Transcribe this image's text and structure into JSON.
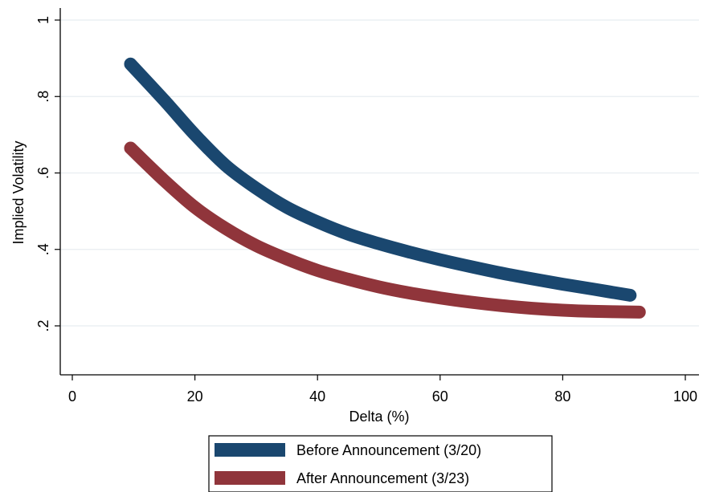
{
  "chart_data": {
    "type": "line",
    "title": "",
    "xlabel": "Delta (%)",
    "ylabel": "Implied Volatility",
    "xlim": [
      0,
      100
    ],
    "ylim": [
      0.1,
      1.0
    ],
    "x_ticks": [
      0,
      20,
      40,
      60,
      80,
      100
    ],
    "x_tick_labels": [
      "0",
      "20",
      "40",
      "60",
      "80",
      "100"
    ],
    "y_ticks": [
      0.2,
      0.4,
      0.6,
      0.8,
      1.0
    ],
    "y_tick_labels": [
      ".2",
      ".4",
      ".6",
      ".8",
      "1"
    ],
    "grid": true,
    "legend_position": "bottom",
    "series": [
      {
        "name": "Before Announcement (3/20)",
        "color": "#1a476f",
        "x": [
          9.5,
          15,
          20,
          25,
          30,
          35,
          40,
          45,
          50,
          55,
          60,
          65,
          70,
          75,
          80,
          85,
          91
        ],
        "y": [
          0.885,
          0.79,
          0.7,
          0.62,
          0.56,
          0.51,
          0.472,
          0.44,
          0.415,
          0.393,
          0.373,
          0.355,
          0.338,
          0.323,
          0.309,
          0.296,
          0.28
        ]
      },
      {
        "name": "After Announcement (3/23)",
        "color": "#90353b",
        "x": [
          9.5,
          15,
          20,
          25,
          30,
          35,
          40,
          45,
          50,
          55,
          60,
          65,
          70,
          75,
          80,
          85,
          92.5
        ],
        "y": [
          0.665,
          0.58,
          0.51,
          0.455,
          0.41,
          0.375,
          0.345,
          0.322,
          0.302,
          0.286,
          0.273,
          0.262,
          0.253,
          0.246,
          0.241,
          0.238,
          0.236
        ]
      }
    ]
  }
}
